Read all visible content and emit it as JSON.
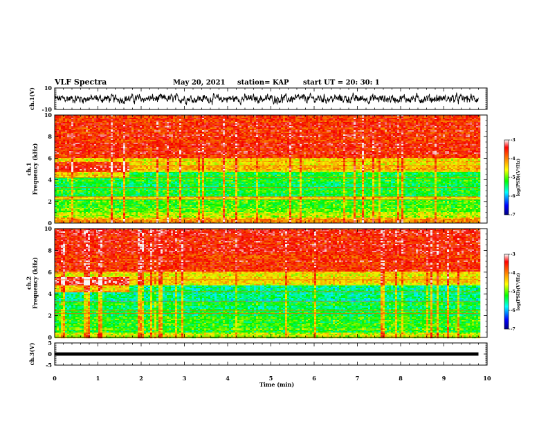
{
  "header": {
    "title": "VLF Spectra",
    "date": "May 20, 2021",
    "station": "station= KAP",
    "start": "start  UT =   20: 30: 1"
  },
  "chart_data": [
    {
      "type": "line",
      "name": "ch1-waveform",
      "ylabel": "ch.1(V)",
      "ylim": [
        -10,
        10
      ],
      "yticks": [
        "10",
        "-10"
      ],
      "xlim": [
        0,
        10
      ],
      "x_extent": [
        0,
        9.8
      ],
      "y_center": 0,
      "y_spread": 2.5
    },
    {
      "type": "heatmap",
      "name": "ch1-spectrogram",
      "ylabel": "ch.1\nFrequency (kHz)",
      "ylim": [
        0,
        10
      ],
      "yticks": [
        "0",
        "2",
        "4",
        "6",
        "8",
        "10"
      ],
      "xlim": [
        0,
        10
      ],
      "x_extent": [
        0,
        9.8
      ],
      "level_bands": [
        {
          "from": 0,
          "to": 0.5,
          "level": -4.2
        },
        {
          "from": 0.5,
          "to": 1.0,
          "level": -4.8
        },
        {
          "from": 1.0,
          "to": 2.2,
          "level": -5.1
        },
        {
          "from": 2.2,
          "to": 2.5,
          "level": -4.5
        },
        {
          "from": 2.5,
          "to": 4.8,
          "level": -5.3
        },
        {
          "from": 4.8,
          "to": 6.0,
          "level": -4.4
        },
        {
          "from": 6.0,
          "to": 10,
          "level": -3.6
        }
      ],
      "colorbar": {
        "label": "log(PSD)(V²/Hz)",
        "range": [
          -7,
          -3
        ],
        "ticks": [
          "-3",
          "-4",
          "-5",
          "-6",
          "-7"
        ]
      }
    },
    {
      "type": "heatmap",
      "name": "ch2-spectrogram",
      "ylabel": "ch.2\nFrequency (kHz)",
      "ylim": [
        0,
        10
      ],
      "yticks": [
        "0",
        "2",
        "4",
        "6",
        "8",
        "10"
      ],
      "xlim": [
        0,
        10
      ],
      "x_extent": [
        0,
        9.8
      ],
      "level_bands": [
        {
          "from": 0,
          "to": 0.4,
          "level": -4.6
        },
        {
          "from": 0.4,
          "to": 2.0,
          "level": -5.1
        },
        {
          "from": 2.0,
          "to": 3.3,
          "level": -5.3
        },
        {
          "from": 3.3,
          "to": 4.8,
          "level": -5.5
        },
        {
          "from": 4.8,
          "to": 6.0,
          "level": -4.5
        },
        {
          "from": 6.0,
          "to": 10,
          "level": -3.6
        }
      ],
      "colorbar": {
        "label": "log(PSD)(V²/Hz)",
        "range": [
          -7,
          -3
        ],
        "ticks": [
          "-3",
          "-4",
          "-5",
          "-6",
          "-7"
        ]
      }
    },
    {
      "type": "line",
      "name": "ch3-waveform",
      "ylabel": "ch.3(V)",
      "ylim": [
        -5,
        5
      ],
      "yticks": [
        "5",
        "0",
        "-5"
      ],
      "xlim": [
        0,
        10
      ],
      "x_extent": [
        0,
        9.8
      ],
      "y_center": 0,
      "y_spread": 0.25
    }
  ],
  "xaxis": {
    "label": "Time (min)",
    "ticks": [
      "0",
      "1",
      "2",
      "3",
      "4",
      "5",
      "6",
      "7",
      "8",
      "9",
      "10"
    ]
  }
}
